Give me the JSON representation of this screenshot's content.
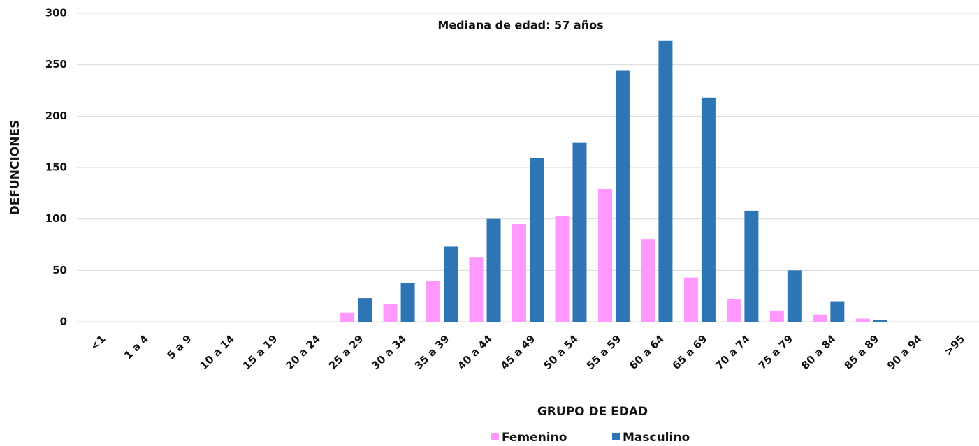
{
  "chart_data": {
    "type": "bar",
    "title": "Mediana de edad: 57 años",
    "x_label": "GRUPO DE EDAD",
    "y_label": "DEFUNCIONES",
    "categories": [
      "<1",
      "1 a 4",
      "5 a 9",
      "10 a 14",
      "15 a 19",
      "20 a 24",
      "25 a 29",
      "30 a 34",
      "35 a 39",
      "40 a 44",
      "45 a 49",
      "50 a 54",
      "55 a 59",
      "60 a 64",
      "65 a 69",
      "70 a 74",
      "75 a 79",
      "80 a 84",
      "85 a 89",
      "90 a 94",
      ">95"
    ],
    "series": [
      {
        "name": "Femenino",
        "color": "#ff99ff",
        "values": [
          0,
          0,
          0,
          0,
          0,
          0,
          9,
          17,
          40,
          63,
          95,
          103,
          129,
          80,
          43,
          22,
          11,
          7,
          3,
          0,
          0
        ]
      },
      {
        "name": "Masculino",
        "color": "#2e75b6",
        "values": [
          0,
          0,
          0,
          0,
          0,
          0,
          23,
          38,
          73,
          100,
          159,
          174,
          244,
          273,
          218,
          108,
          50,
          20,
          2,
          0,
          0
        ]
      }
    ],
    "ylim": [
      0,
      300
    ],
    "yticks": [
      0,
      50,
      100,
      150,
      200,
      250,
      300
    ],
    "grid": true,
    "legend": "bottom"
  }
}
